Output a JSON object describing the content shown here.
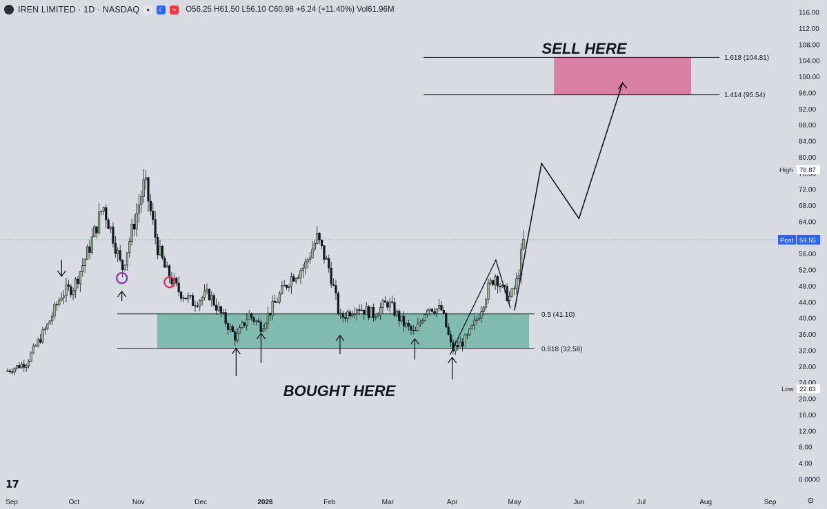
{
  "header": {
    "symbol": "IREN LIMITED · 1D · NASDAQ",
    "open": "O56.25",
    "high": "H61.50",
    "low": "L56.10",
    "close": "C60.98",
    "change": "+6.24 (+11.40%)",
    "volume": "Vol61.96M"
  },
  "colors": {
    "background": "#d8dbe2",
    "sell_zone": "#d97ba0",
    "buy_zone": "#7cb8ab",
    "candle_up": "#9bbf8c",
    "candle_down": "#131722",
    "post_badge": "#2962ff"
  },
  "annotations": {
    "sell_text": "SELL HERE",
    "buy_text": "BOUGHT HERE"
  },
  "fib_labels": {
    "f1618": "1.618 (104.81)",
    "f1414": "1.414 (95.54)",
    "f05": "0.5 (41.10)",
    "f0618": "0.618 (32.58)"
  },
  "price_badges": {
    "high_label": "High",
    "high_value": "76.87",
    "post_label": "Post",
    "post_value": "59.55",
    "low_label": "Low",
    "low_value": "22.63"
  },
  "chart_data": {
    "type": "candlestick",
    "y_ticks": [
      "116.00",
      "112.00",
      "108.00",
      "104.00",
      "100.00",
      "96.00",
      "92.00",
      "88.00",
      "84.00",
      "80.00",
      "76.00",
      "72.00",
      "68.00",
      "64.00",
      "60.00",
      "56.00",
      "52.00",
      "48.00",
      "44.00",
      "40.00",
      "36.00",
      "32.00",
      "28.00",
      "24.00",
      "20.00",
      "16.00",
      "12.00",
      "8.00",
      "4.00",
      "0.0000"
    ],
    "x_ticks": [
      "Sep",
      "Oct",
      "Nov",
      "Dec",
      "2026",
      "Feb",
      "Mar",
      "Apr",
      "May",
      "Jun",
      "Jul",
      "Aug",
      "Sep"
    ],
    "ylim": [
      0,
      117
    ],
    "zones": [
      {
        "name": "sell",
        "from": 95.54,
        "to": 104.81,
        "x_start": "2026-05-20",
        "x_end": "2026-07-25"
      },
      {
        "name": "buy",
        "from": 32.58,
        "to": 41.1,
        "x_start": "2025-11-10",
        "x_end": "2026-05-08"
      }
    ],
    "projection_path": [
      {
        "date": "2026-05-01",
        "price": 42
      },
      {
        "date": "2026-05-14",
        "price": 78.5
      },
      {
        "date": "2026-06-01",
        "price": 64.8
      },
      {
        "date": "2026-06-22",
        "price": 98.5
      }
    ],
    "price_path": [
      {
        "date": "2025-08-30",
        "price": 27
      },
      {
        "date": "2025-09-08",
        "price": 29
      },
      {
        "date": "2025-09-18",
        "price": 38
      },
      {
        "date": "2025-09-25",
        "price": 46
      },
      {
        "date": "2025-10-01",
        "price": 48
      },
      {
        "date": "2025-10-08",
        "price": 57
      },
      {
        "date": "2025-10-15",
        "price": 68
      },
      {
        "date": "2025-10-20",
        "price": 60
      },
      {
        "date": "2025-10-24",
        "price": 52
      },
      {
        "date": "2025-10-30",
        "price": 64
      },
      {
        "date": "2025-11-04",
        "price": 74
      },
      {
        "date": "2025-11-10",
        "price": 58
      },
      {
        "date": "2025-11-14",
        "price": 52
      },
      {
        "date": "2025-11-20",
        "price": 47
      },
      {
        "date": "2025-11-27",
        "price": 44
      },
      {
        "date": "2025-12-05",
        "price": 46
      },
      {
        "date": "2025-12-12",
        "price": 40
      },
      {
        "date": "2025-12-18",
        "price": 35
      },
      {
        "date": "2025-12-24",
        "price": 41
      },
      {
        "date": "2025-12-30",
        "price": 38
      },
      {
        "date": "2026-01-06",
        "price": 44
      },
      {
        "date": "2026-01-13",
        "price": 50
      },
      {
        "date": "2026-01-20",
        "price": 53
      },
      {
        "date": "2026-01-26",
        "price": 60
      },
      {
        "date": "2026-02-01",
        "price": 52
      },
      {
        "date": "2026-02-06",
        "price": 40
      },
      {
        "date": "2026-02-14",
        "price": 43
      },
      {
        "date": "2026-02-22",
        "price": 41
      },
      {
        "date": "2026-03-01",
        "price": 44
      },
      {
        "date": "2026-03-08",
        "price": 39
      },
      {
        "date": "2026-03-14",
        "price": 36
      },
      {
        "date": "2026-03-20",
        "price": 43
      },
      {
        "date": "2026-03-27",
        "price": 42
      },
      {
        "date": "2026-04-01",
        "price": 32
      },
      {
        "date": "2026-04-08",
        "price": 35
      },
      {
        "date": "2026-04-13",
        "price": 40
      },
      {
        "date": "2026-04-18",
        "price": 47
      },
      {
        "date": "2026-04-22",
        "price": 51
      },
      {
        "date": "2026-04-25",
        "price": 47
      },
      {
        "date": "2026-04-29",
        "price": 45
      },
      {
        "date": "2026-05-02",
        "price": 49
      },
      {
        "date": "2026-05-06",
        "price": 61
      }
    ],
    "arrows_up": [
      "2025-10-24",
      "2025-12-18",
      "2025-12-30",
      "2026-02-06",
      "2026-03-14",
      "2026-04-01"
    ],
    "arrows_down": [
      "2025-09-25"
    ],
    "circles": [
      {
        "date": "2025-10-24",
        "price": 50,
        "color": "#8e3fb5"
      },
      {
        "date": "2025-11-16",
        "price": 49,
        "color": "#d83a5e"
      }
    ]
  }
}
